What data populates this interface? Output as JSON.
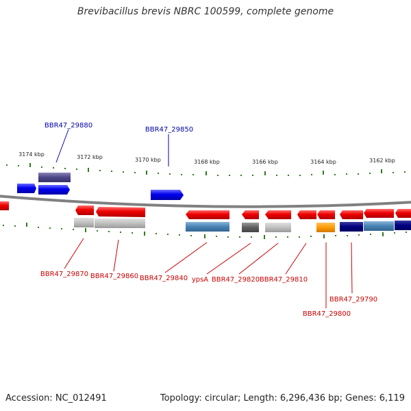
{
  "title": "Brevibacillus brevis NBRC 100599, complete genome",
  "footer": {
    "accession": "Accession: NC_012491",
    "summary": "Topology: circular; Length: 6,296,436 bp; Genes: 6,119"
  },
  "colors": {
    "backbone": "#808080",
    "forward_gene": "#0000ee",
    "reverse_gene": "#ee0000",
    "forward_label": "#0000aa",
    "reverse_label": "#cc0000",
    "tick": "#2e7d1a"
  },
  "scale_labels": [
    "3174 kbp",
    "3172 kbp",
    "3170 kbp",
    "3168 kbp",
    "3166 kbp",
    "3164 kbp",
    "3162 kbp"
  ],
  "forward_labels": [
    "BBR47_29880",
    "BBR47_29850"
  ],
  "reverse_labels": [
    "BBR47_29870",
    "BBR47_29860",
    "BBR47_29840",
    "ypsA",
    "BBR47_29820",
    "BBR47_29810",
    "BBR47_29790",
    "BBR47_29800"
  ]
}
